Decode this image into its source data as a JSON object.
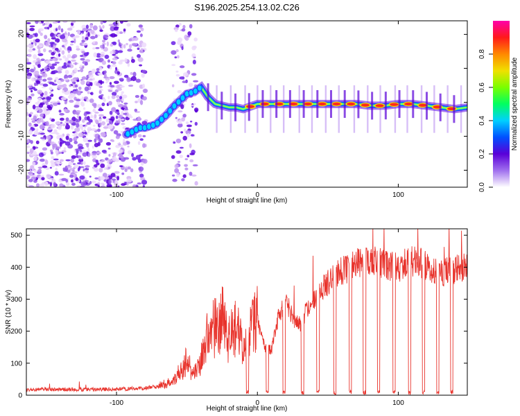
{
  "title": "S196.2025.254.13.02.C26",
  "colors": {
    "snr_line": "#e8332c",
    "ridge_peak": "#ff2a1a",
    "frame": "#000000",
    "cloud": [
      "#ecd9fb",
      "#d3b2f5",
      "#b78af0",
      "#9055ea",
      "#6a1fe6",
      "#5a00d8"
    ]
  },
  "chart_data": [
    {
      "type": "heatmap",
      "title": "S196.2025.254.13.02.C26",
      "xlabel": "Height of straight line (km)",
      "ylabel": "Frequency (Hz)",
      "xlim": [
        -164,
        149
      ],
      "ylim": [
        -25,
        24
      ],
      "xticks": [
        -100,
        0,
        100
      ],
      "yticks": [
        -20,
        -10,
        0,
        10,
        20
      ],
      "ridge": {
        "x": [
          -93,
          -88,
          -84,
          -80,
          -76,
          -72,
          -68,
          -64,
          -60,
          -55,
          -50,
          -45,
          -40,
          -35,
          -30,
          -25,
          -20,
          -15,
          -10,
          0,
          10,
          20,
          30,
          40,
          50,
          60,
          70,
          80,
          90,
          100,
          110,
          120,
          130,
          140,
          149
        ],
        "y": [
          -9.5,
          -8.5,
          -7.5,
          -7.5,
          -7.0,
          -6.5,
          -5.0,
          -3.5,
          -1.5,
          0.5,
          2.5,
          3.0,
          4.5,
          1.5,
          -0.5,
          -1.0,
          -1.5,
          -1.5,
          -2.0,
          -0.5,
          -0.5,
          -0.5,
          -0.5,
          -0.5,
          -0.5,
          -0.5,
          -0.5,
          -1.0,
          -1.0,
          -0.5,
          -0.5,
          -1.0,
          -1.5,
          -2.0,
          -1.5
        ]
      },
      "colorbar": {
        "label": "Normalized spectral amplitude",
        "range": [
          0,
          1
        ],
        "ticks": [
          "0.0",
          "0.2",
          "0.4",
          "0.6",
          "0.8"
        ],
        "stops": [
          "#ffffff",
          "#a070ee",
          "#5a00d8",
          "#0050ff",
          "#00d0ff",
          "#00ff60",
          "#7aff00",
          "#f0e000",
          "#ff8800",
          "#ff1a1a",
          "#ff00aa"
        ]
      }
    },
    {
      "type": "line",
      "xlabel": "Height of straight line (km)",
      "ylabel": "SNR (10 * v/v)",
      "xlim": [
        -164,
        149
      ],
      "ylim": [
        0,
        520
      ],
      "xticks": [
        -100,
        0,
        100
      ],
      "yticks": [
        0,
        100,
        200,
        300,
        400,
        500
      ],
      "baseline": {
        "x": [
          -164,
          -140,
          -120,
          -100,
          -80,
          -70,
          -62,
          -55,
          -50,
          -45,
          -40,
          -35,
          -30,
          -25,
          -20,
          -15,
          -10,
          -5,
          0,
          5,
          10,
          15,
          20,
          25,
          30,
          35,
          40,
          45,
          50,
          55,
          60,
          70,
          80,
          90,
          100,
          110,
          120,
          130,
          140,
          149
        ],
        "y": [
          18,
          18,
          18,
          19,
          22,
          28,
          40,
          70,
          110,
          60,
          110,
          200,
          210,
          240,
          170,
          220,
          130,
          200,
          240,
          150,
          140,
          250,
          300,
          240,
          220,
          270,
          290,
          330,
          350,
          370,
          390,
          410,
          420,
          410,
          400,
          420,
          405,
          380,
          390,
          400
        ]
      },
      "dropouts_x": [
        -7,
        7,
        19,
        32,
        43,
        55,
        66,
        76,
        86,
        97,
        108,
        118,
        128,
        138
      ]
    }
  ]
}
